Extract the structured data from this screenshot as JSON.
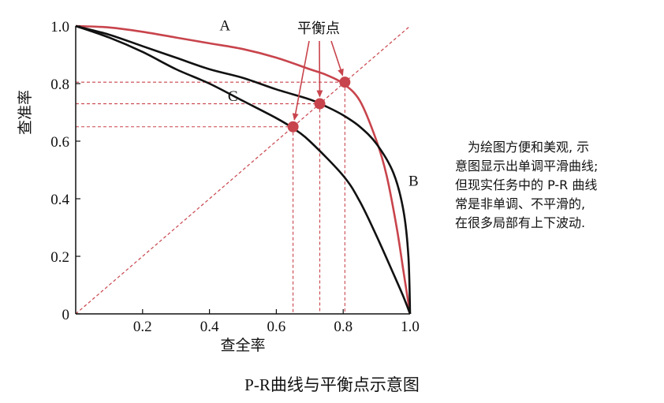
{
  "chart_data": {
    "type": "line",
    "xlabel": "查全率",
    "ylabel": "查准率",
    "xlim": [
      0,
      1.0
    ],
    "ylim": [
      0,
      1.0
    ],
    "x_ticks": [
      "0.2",
      "0.4",
      "0.6",
      "0.8",
      "1.0"
    ],
    "y_ticks": [
      "0",
      "0.2",
      "0.4",
      "0.6",
      "0.8",
      "1.0"
    ],
    "grid": false,
    "series": [
      {
        "name": "A",
        "color": "#c8444c",
        "x": [
          0,
          0.1,
          0.2,
          0.3,
          0.4,
          0.5,
          0.6,
          0.7,
          0.75,
          0.8,
          0.85,
          0.9,
          0.93,
          0.96,
          0.98,
          1.0
        ],
        "y": [
          1.0,
          0.995,
          0.98,
          0.96,
          0.94,
          0.92,
          0.89,
          0.85,
          0.83,
          0.8,
          0.74,
          0.6,
          0.48,
          0.3,
          0.15,
          0
        ]
      },
      {
        "name": "B",
        "color": "#111111",
        "x": [
          0,
          0.1,
          0.2,
          0.3,
          0.4,
          0.5,
          0.6,
          0.7,
          0.75,
          0.8,
          0.85,
          0.9,
          0.95,
          0.98,
          0.995,
          1.0
        ],
        "y": [
          1.0,
          0.97,
          0.93,
          0.89,
          0.85,
          0.82,
          0.78,
          0.745,
          0.72,
          0.69,
          0.65,
          0.59,
          0.49,
          0.36,
          0.2,
          0
        ]
      },
      {
        "name": "C",
        "color": "#111111",
        "x": [
          0,
          0.1,
          0.2,
          0.3,
          0.4,
          0.5,
          0.6,
          0.65,
          0.7,
          0.8,
          0.85,
          0.9,
          0.95,
          0.98,
          1.0
        ],
        "y": [
          1.0,
          0.96,
          0.91,
          0.85,
          0.8,
          0.74,
          0.68,
          0.645,
          0.6,
          0.48,
          0.39,
          0.27,
          0.14,
          0.06,
          0
        ]
      }
    ],
    "balance_points": [
      {
        "curve": "C",
        "value": 0.65
      },
      {
        "curve": "B",
        "value": 0.73
      },
      {
        "curve": "A",
        "value": 0.805
      }
    ],
    "annotation": "平衡点",
    "accent_color": "#c8444c"
  },
  "caption": "P-R曲线与平衡点示意图",
  "note_lines": [
    "　为绘图方便和美观, 示",
    "意图显示出单调平滑曲线;",
    "但现实任务中的 P-R 曲线",
    "常是非单调、不平滑的,",
    "在很多局部有上下波动."
  ]
}
